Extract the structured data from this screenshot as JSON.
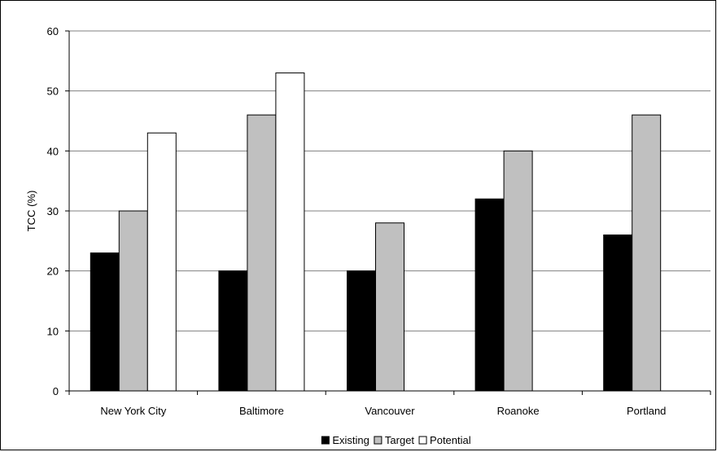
{
  "chart_data": {
    "type": "bar",
    "title": "",
    "xlabel": "",
    "ylabel": "TCC (%)",
    "ylim": [
      0,
      60
    ],
    "yticks": [
      0,
      10,
      20,
      30,
      40,
      50,
      60
    ],
    "grid": true,
    "legend_position": "bottom",
    "categories": [
      "New York City",
      "Baltimore",
      "Vancouver",
      "Roanoke",
      "Portland"
    ],
    "series": [
      {
        "name": "Existing",
        "color": "#000000",
        "values": [
          23,
          20,
          20,
          32,
          26
        ]
      },
      {
        "name": "Target",
        "color": "#c0c0c0",
        "values": [
          30,
          46,
          28,
          40,
          46
        ]
      },
      {
        "name": "Potential",
        "color": "#ffffff",
        "values": [
          43,
          53,
          null,
          null,
          null
        ]
      }
    ]
  }
}
